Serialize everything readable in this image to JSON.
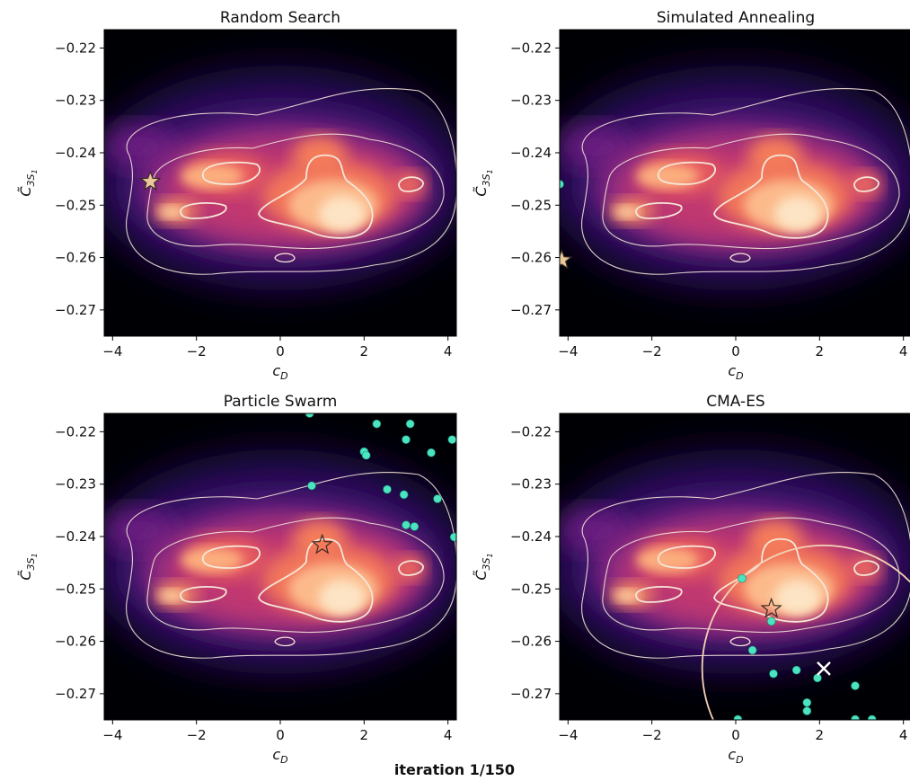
{
  "figure": {
    "suptitle": "",
    "footer": "iteration 1/150"
  },
  "colors": {
    "background": "#000004",
    "contour": "#f5e6d8",
    "particle": "#4be3c0",
    "best": "#e9c89a",
    "ellipse": "#f3d2b6",
    "mean_marker": "#ffffff"
  },
  "chart_data": [
    {
      "type": "heatmap",
      "title": "Random Search",
      "xlabel": "c_D",
      "ylabel": "C̃_{3S1}",
      "xlim": [
        -4.2,
        4.2
      ],
      "ylim": [
        -0.275,
        -0.2165
      ],
      "xticks": [
        -4,
        -2,
        0,
        2,
        4
      ],
      "yticks": [
        -0.27,
        -0.26,
        -0.25,
        -0.24,
        -0.23,
        -0.22
      ],
      "points": [],
      "best": [
        -3.1,
        -0.2455
      ],
      "best_fill": true
    },
    {
      "type": "heatmap",
      "title": "Simulated Annealing",
      "xlabel": "c_D",
      "ylabel": "C̃_{3S1}",
      "xlim": [
        -4.2,
        4.2
      ],
      "ylim": [
        -0.275,
        -0.2165
      ],
      "xticks": [
        -4,
        -2,
        0,
        2,
        4
      ],
      "yticks": [
        -0.27,
        -0.26,
        -0.25,
        -0.24,
        -0.23,
        -0.22
      ],
      "points": [
        [
          -4.2,
          -0.246
        ]
      ],
      "best": [
        -4.15,
        -0.2605
      ],
      "best_fill": true
    },
    {
      "type": "heatmap",
      "title": "Particle Swarm",
      "xlabel": "c_D",
      "ylabel": "C̃_{3S1}",
      "xlim": [
        -4.2,
        4.2
      ],
      "ylim": [
        -0.275,
        -0.2165
      ],
      "xticks": [
        -4,
        -2,
        0,
        2,
        4
      ],
      "yticks": [
        -0.27,
        -0.26,
        -0.25,
        -0.24,
        -0.23,
        -0.22
      ],
      "points": [
        [
          0.7,
          -0.2165
        ],
        [
          2.3,
          -0.2185
        ],
        [
          3.1,
          -0.2185
        ],
        [
          3.0,
          -0.2215
        ],
        [
          4.1,
          -0.2215
        ],
        [
          2.0,
          -0.2238
        ],
        [
          2.05,
          -0.2245
        ],
        [
          3.6,
          -0.224
        ],
        [
          0.75,
          -0.2303
        ],
        [
          2.55,
          -0.231
        ],
        [
          2.95,
          -0.232
        ],
        [
          3.75,
          -0.2328
        ],
        [
          3.0,
          -0.2378
        ],
        [
          3.2,
          -0.2381
        ],
        [
          4.15,
          -0.2401
        ]
      ],
      "best": [
        1.0,
        -0.2416
      ],
      "best_fill": false
    },
    {
      "type": "heatmap",
      "title": "CMA-ES",
      "xlabel": "c_D",
      "ylabel": "C̃_{3S1}",
      "xlim": [
        -4.2,
        4.2
      ],
      "ylim": [
        -0.275,
        -0.2165
      ],
      "xticks": [
        -4,
        -2,
        0,
        2,
        4
      ],
      "yticks": [
        -0.27,
        -0.26,
        -0.25,
        -0.24,
        -0.23,
        -0.22
      ],
      "points": [
        [
          0.15,
          -0.248
        ],
        [
          0.85,
          -0.2562
        ],
        [
          0.4,
          -0.2617
        ],
        [
          0.9,
          -0.2662
        ],
        [
          1.45,
          -0.2655
        ],
        [
          1.95,
          -0.267
        ],
        [
          2.85,
          -0.2685
        ],
        [
          1.7,
          -0.2717
        ],
        [
          1.7,
          -0.2733
        ],
        [
          0.05,
          -0.2749
        ],
        [
          2.85,
          -0.2749
        ],
        [
          3.25,
          -0.2749
        ]
      ],
      "best": [
        0.85,
        -0.2538
      ],
      "best_fill": false,
      "mean": [
        2.1,
        -0.2652
      ],
      "ellipse": {
        "cx": 2.1,
        "cy": -0.2652,
        "rx": 2.9,
        "ry": 0.0235
      }
    }
  ]
}
